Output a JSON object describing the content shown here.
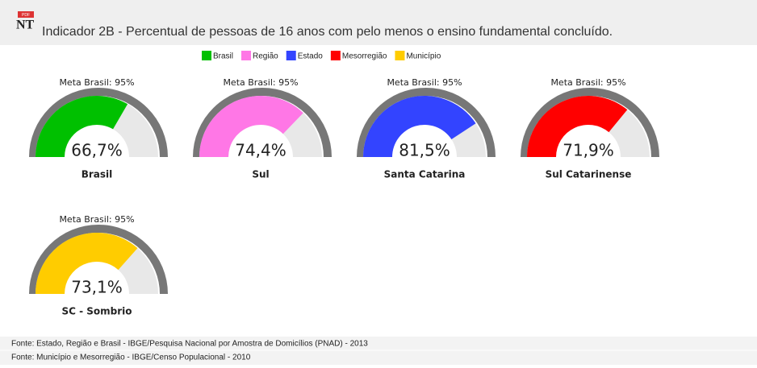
{
  "header": {
    "pdf_icon": "PDF",
    "badge": "NT",
    "title": "Indicador 2B - Percentual de pessoas de 16 anos com pelo menos o ensino fundamental concluído."
  },
  "legend": [
    {
      "name": "Brasil",
      "color": "#00c000"
    },
    {
      "name": "Região",
      "color": "#ff77e6"
    },
    {
      "name": "Estado",
      "color": "#3344ff"
    },
    {
      "name": "Mesorregião",
      "color": "#ff0000"
    },
    {
      "name": "Município",
      "color": "#ffcc00"
    }
  ],
  "chart_data": [
    {
      "type": "gauge",
      "title": "Meta Brasil: 95%",
      "categories": [
        "Brasil"
      ],
      "values": [
        66.7
      ],
      "value_labels": [
        "66,7%"
      ],
      "color": "#00c000",
      "ylim": [
        0,
        100
      ]
    },
    {
      "type": "gauge",
      "title": "Meta Brasil: 95%",
      "categories": [
        "Sul"
      ],
      "values": [
        74.4
      ],
      "value_labels": [
        "74,4%"
      ],
      "color": "#ff77e6",
      "ylim": [
        0,
        100
      ]
    },
    {
      "type": "gauge",
      "title": "Meta Brasil: 95%",
      "categories": [
        "Santa Catarina"
      ],
      "values": [
        81.5
      ],
      "value_labels": [
        "81,5%"
      ],
      "color": "#3344ff",
      "ylim": [
        0,
        100
      ]
    },
    {
      "type": "gauge",
      "title": "Meta Brasil: 95%",
      "categories": [
        "Sul Catarinense"
      ],
      "values": [
        71.9
      ],
      "value_labels": [
        "71,9%"
      ],
      "color": "#ff0000",
      "ylim": [
        0,
        100
      ]
    },
    {
      "type": "gauge",
      "title": "Meta Brasil: 95%",
      "categories": [
        "SC - Sombrio"
      ],
      "values": [
        73.1
      ],
      "value_labels": [
        "73,1%"
      ],
      "color": "#ffcc00",
      "ylim": [
        0,
        100
      ]
    }
  ],
  "footer": [
    "Fonte: Estado, Região e Brasil - IBGE/Pesquisa Nacional por Amostra de Domicílios (PNAD) - 2013",
    "Fonte: Município e Mesorregião - IBGE/Censo Populacional - 2010"
  ]
}
